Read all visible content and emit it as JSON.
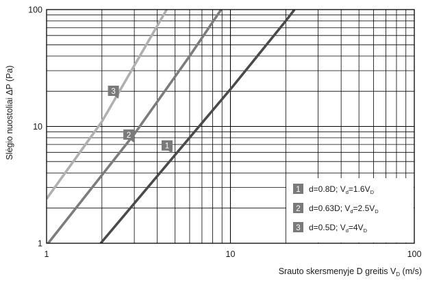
{
  "chart_data": {
    "type": "line",
    "x_scale": "log",
    "y_scale": "log",
    "xlim": [
      1,
      100
    ],
    "ylim": [
      1,
      100
    ],
    "grid": true,
    "legend_position": "bottom-right",
    "xlabel": {
      "main": "Srauto skersmenyje D greitis V",
      "sub": "D",
      "unit": " (m/s)"
    },
    "ylabel": "Slėgio nuostoliai ΔP (Pa)",
    "x_ticks": [
      {
        "value": 1,
        "label": "1"
      },
      {
        "value": 10,
        "label": "10"
      },
      {
        "value": 100,
        "label": "100"
      }
    ],
    "y_ticks": [
      {
        "value": 1,
        "label": "1"
      },
      {
        "value": 10,
        "label": "10"
      },
      {
        "value": 100,
        "label": "100"
      }
    ],
    "series": [
      {
        "id": "1",
        "marker": "1",
        "color": "#4a4a4a",
        "legend": {
          "a": "d=0.8D; V",
          "b": "d",
          "c": "=1.6V",
          "d": "D"
        },
        "points": [
          [
            1.97,
            1
          ],
          [
            10.3,
            22
          ],
          [
            20,
            80
          ],
          [
            22.3,
            100
          ]
        ],
        "label_at": [
          4.6,
          6.3
        ]
      },
      {
        "id": "2",
        "marker": "2",
        "color": "#7c7c7c",
        "legend": {
          "a": "d=0.63D; V",
          "b": "d",
          "c": "=2.5V",
          "d": "D"
        },
        "points": [
          [
            1.02,
            1
          ],
          [
            3,
            8.6
          ],
          [
            6,
            40
          ],
          [
            8.9,
            100
          ]
        ],
        "label_at": [
          2.85,
          7.8
        ]
      },
      {
        "id": "3",
        "marker": "3",
        "color": "#b0b0b0",
        "legend": {
          "a": "d=0.5D; V",
          "b": "d",
          "c": "=4V",
          "d": "D"
        },
        "points": [
          [
            1,
            2.4
          ],
          [
            2,
            11
          ],
          [
            4.5,
            100
          ]
        ],
        "label_at": [
          2.35,
          18.5
        ]
      }
    ]
  }
}
